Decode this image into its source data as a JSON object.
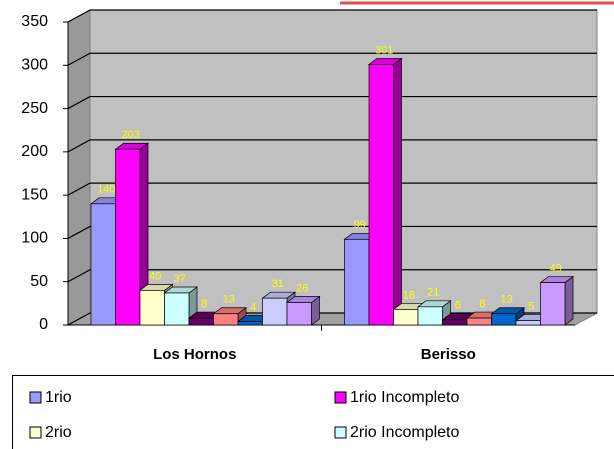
{
  "chart_data": {
    "type": "bar3d",
    "categories": [
      "Los Hornos",
      "Berisso"
    ],
    "series": [
      {
        "name": "1rio",
        "color": "#9999ff",
        "values": [
          140,
          99
        ]
      },
      {
        "name": "1rio Incompleto",
        "color": "#ff00ff",
        "values": [
          203,
          301
        ]
      },
      {
        "name": "2rio",
        "color": "#ffffcc",
        "values": [
          40,
          18
        ]
      },
      {
        "name": "2rio Incompleto",
        "color": "#ccffff",
        "values": [
          37,
          21
        ]
      },
      {
        "color": "#660066",
        "values": [
          8,
          6
        ]
      },
      {
        "color": "#ff8080",
        "values": [
          13,
          8
        ]
      },
      {
        "color": "#0066cc",
        "values": [
          4,
          13
        ]
      },
      {
        "color": "#ccccff",
        "values": [
          31,
          5
        ]
      },
      {
        "color": "#cc99ff",
        "values": [
          26,
          49
        ]
      }
    ],
    "ylim": [
      0,
      350
    ],
    "yticks": [
      0,
      50,
      100,
      150,
      200,
      250,
      300,
      350
    ],
    "grid": true
  }
}
